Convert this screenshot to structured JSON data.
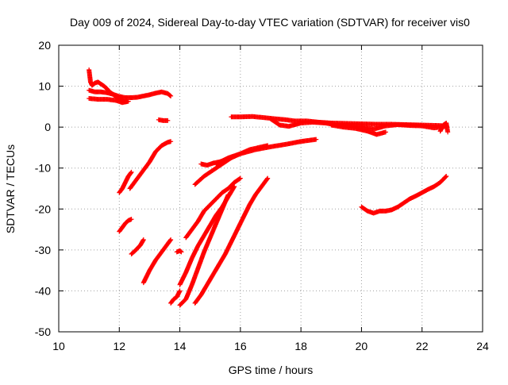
{
  "chart_data": {
    "type": "scatter",
    "title": "Day 009 of 2024, Sidereal Day-to-day VTEC variation (SDTVAR) for receiver vis0",
    "xlabel": "GPS time / hours",
    "ylabel": "SDTVAR / TECUs",
    "xlim": [
      10,
      24
    ],
    "ylim": [
      -50,
      20
    ],
    "xticks": [
      10,
      12,
      14,
      16,
      18,
      20,
      22,
      24
    ],
    "yticks": [
      -50,
      -40,
      -30,
      -20,
      -10,
      0,
      10,
      20
    ],
    "xtick_labels": [
      "10",
      "12",
      "14",
      "16",
      "18",
      "20",
      "22",
      "24"
    ],
    "ytick_labels": [
      "-50",
      "-40",
      "-30",
      "-20",
      "-10",
      "0",
      "10",
      "20"
    ],
    "grid": true,
    "legend": "none",
    "marker": "+",
    "color": "#ff0000",
    "arcs": [
      {
        "x": [
          11.0,
          11.05,
          11.1,
          11.2,
          11.3,
          11.4,
          11.5,
          11.6,
          11.7,
          11.8,
          11.9,
          12.0,
          12.1,
          12.2
        ],
        "y": [
          14.0,
          11.0,
          10.2,
          10.8,
          11.0,
          10.5,
          10.0,
          9.3,
          8.5,
          8.0,
          7.3,
          7.0,
          6.5,
          6.2
        ]
      },
      {
        "x": [
          11.0,
          11.2,
          11.4,
          11.6,
          11.8,
          12.0,
          12.2,
          12.4,
          12.6,
          12.8,
          13.0,
          13.2,
          13.4,
          13.6,
          13.7
        ],
        "y": [
          9.0,
          8.6,
          8.6,
          8.4,
          8.0,
          7.5,
          7.2,
          7.2,
          7.3,
          7.6,
          7.9,
          8.3,
          8.6,
          8.2,
          7.6
        ]
      },
      {
        "x": [
          11.0,
          11.3,
          11.6,
          11.9,
          12.1,
          12.3
        ],
        "y": [
          7.0,
          6.8,
          6.8,
          6.5,
          6.0,
          6.3
        ]
      },
      {
        "x": [
          13.3,
          13.45,
          13.6
        ],
        "y": [
          1.8,
          1.6,
          1.6
        ]
      },
      {
        "x": [
          12.0,
          12.1,
          12.2,
          12.3,
          12.4
        ],
        "y": [
          -16.0,
          -15.0,
          -13.5,
          -12.0,
          -11.0
        ]
      },
      {
        "x": [
          12.35,
          12.6,
          12.8,
          13.0,
          13.2,
          13.4,
          13.6,
          13.7
        ],
        "y": [
          -15.0,
          -12.5,
          -10.5,
          -8.5,
          -6.0,
          -4.5,
          -3.7,
          -3.5
        ]
      },
      {
        "x": [
          12.0,
          12.1,
          12.2,
          12.3,
          12.4
        ],
        "y": [
          -25.5,
          -24.5,
          -23.5,
          -22.8,
          -22.5
        ]
      },
      {
        "x": [
          12.4,
          12.55,
          12.7,
          12.8
        ],
        "y": [
          -31.0,
          -30.0,
          -28.8,
          -27.5
        ]
      },
      {
        "x": [
          12.8,
          13.0,
          13.2,
          13.4,
          13.6,
          13.7
        ],
        "y": [
          -38.0,
          -35.0,
          -32.5,
          -30.5,
          -28.5,
          -27.5
        ]
      },
      {
        "x": [
          13.7,
          13.8,
          13.9,
          14.0
        ],
        "y": [
          -43.0,
          -42.0,
          -41.5,
          -40.0
        ]
      },
      {
        "x": [
          13.9,
          14.0,
          14.05
        ],
        "y": [
          -30.5,
          -30.2,
          -30.5
        ]
      },
      {
        "x": [
          14.0,
          14.2,
          14.4,
          14.6,
          14.8,
          15.0,
          15.2,
          15.4,
          15.6,
          15.8
        ],
        "y": [
          -38.5,
          -35.5,
          -32.0,
          -29.0,
          -26.5,
          -24.0,
          -21.5,
          -19.5,
          -17.0,
          -14.5
        ]
      },
      {
        "x": [
          14.0,
          14.2,
          14.4,
          14.6,
          14.8,
          15.0,
          15.2,
          15.4,
          15.6
        ],
        "y": [
          -43.5,
          -42.0,
          -38.5,
          -34.5,
          -30.5,
          -27.0,
          -23.5,
          -20.0,
          -16.5
        ]
      },
      {
        "x": [
          14.2,
          14.4,
          14.6,
          14.8,
          15.0,
          15.2,
          15.4,
          15.6,
          15.8,
          16.0
        ],
        "y": [
          -27.0,
          -25.0,
          -23.0,
          -20.5,
          -19.0,
          -17.5,
          -16.0,
          -15.0,
          -13.5,
          -12.5
        ]
      },
      {
        "x": [
          14.5,
          14.7,
          14.9,
          15.1,
          15.3,
          15.5,
          15.7,
          15.9,
          16.1,
          16.3,
          16.5,
          16.7,
          16.9
        ],
        "y": [
          -43.0,
          -41.0,
          -38.5,
          -36.0,
          -33.5,
          -31.0,
          -28.0,
          -25.0,
          -22.0,
          -19.0,
          -16.5,
          -14.5,
          -12.5
        ]
      },
      {
        "x": [
          14.5,
          14.8,
          15.1,
          15.4,
          15.7,
          16.0,
          16.3,
          16.6,
          16.9
        ],
        "y": [
          -14.0,
          -12.0,
          -10.5,
          -9.0,
          -7.5,
          -6.5,
          -5.5,
          -5.0,
          -4.5
        ]
      },
      {
        "x": [
          14.7,
          14.9,
          15.1,
          15.3,
          15.5
        ],
        "y": [
          -9.0,
          -9.3,
          -8.8,
          -8.5,
          -8.0
        ]
      },
      {
        "x": [
          15.2,
          15.6,
          16.0,
          16.5,
          17.0,
          17.5,
          18.0,
          18.5
        ],
        "y": [
          -9.0,
          -7.5,
          -6.5,
          -5.5,
          -4.8,
          -4.2,
          -3.5,
          -3.0
        ]
      },
      {
        "x": [
          15.7,
          16.0,
          16.4,
          16.8,
          17.2,
          17.5,
          17.8,
          18.2,
          18.6,
          19.0,
          19.5,
          20.0,
          20.5,
          21.0,
          21.5,
          22.0,
          22.5,
          22.8
        ],
        "y": [
          2.5,
          2.5,
          2.6,
          2.3,
          2.0,
          1.8,
          1.5,
          1.5,
          1.2,
          1.0,
          0.9,
          0.8,
          0.7,
          0.7,
          0.6,
          0.5,
          0.4,
          0.3
        ]
      },
      {
        "x": [
          17.0,
          17.3,
          17.6,
          18.0,
          18.4,
          18.8,
          19.2,
          19.6,
          20.0,
          20.4,
          20.8,
          21.2,
          21.6,
          22.0,
          22.4,
          22.8
        ],
        "y": [
          2.0,
          0.5,
          0.2,
          1.0,
          1.2,
          1.0,
          0.5,
          0.2,
          0.1,
          -0.5,
          0.3,
          0.6,
          0.4,
          0.3,
          -0.2,
          0.2
        ]
      },
      {
        "x": [
          19.0,
          19.4,
          19.8,
          20.2,
          20.5,
          20.8
        ],
        "y": [
          0.5,
          0.0,
          -0.3,
          -1.0,
          -1.8,
          -1.2
        ]
      },
      {
        "x": [
          22.6,
          22.7,
          22.8,
          22.85
        ],
        "y": [
          -1.0,
          0.5,
          1.0,
          -1.2
        ]
      },
      {
        "x": [
          20.0,
          20.2,
          20.4,
          20.6,
          20.8,
          21.0,
          21.2,
          21.4,
          21.6,
          21.8,
          22.0,
          22.2,
          22.4,
          22.6,
          22.8
        ],
        "y": [
          -19.5,
          -20.5,
          -21.0,
          -20.5,
          -20.5,
          -20.2,
          -19.5,
          -18.5,
          -17.5,
          -16.8,
          -16.0,
          -15.2,
          -14.5,
          -13.5,
          -12.0
        ]
      }
    ]
  }
}
